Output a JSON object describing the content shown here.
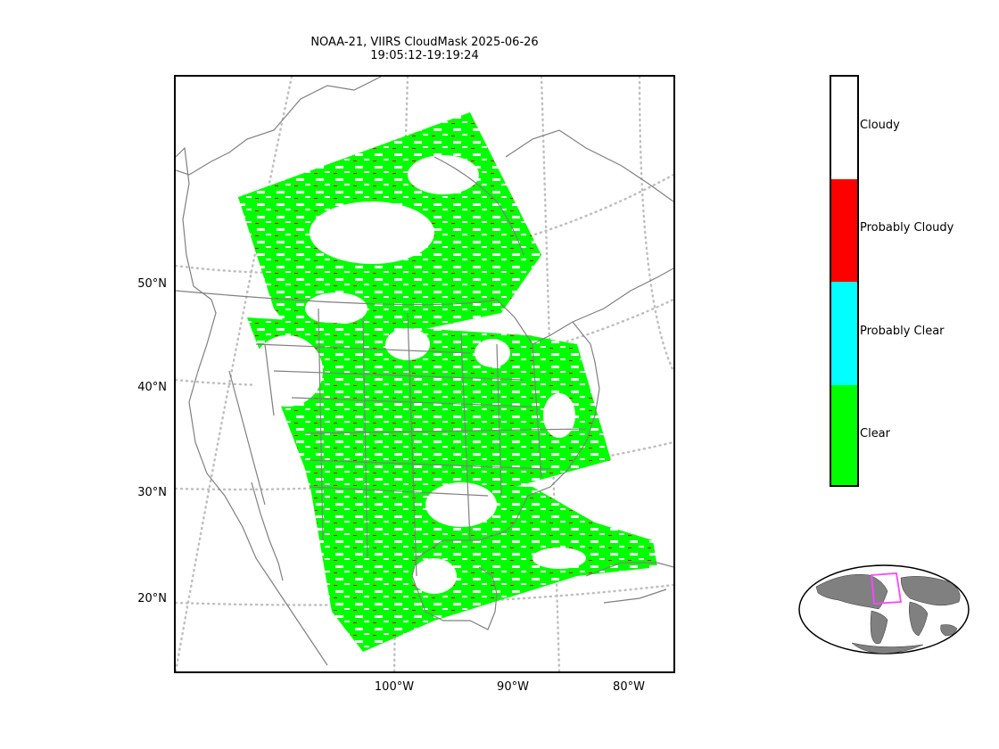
{
  "title": {
    "line1": "NOAA-21, VIIRS CloudMask 2025-06-26",
    "line2": "19:05:12-19:19:24"
  },
  "map": {
    "latitude_labels": [
      "50°N",
      "40°N",
      "30°N",
      "20°N"
    ],
    "longitude_labels": [
      "100°W",
      "90°W",
      "80°W"
    ],
    "colors": {
      "land_outline": "#808080",
      "graticule": "#bfbfbf",
      "clear": "#00ff00",
      "probably_clear": "#00ffff",
      "probably_cloudy": "#ff0000",
      "cloudy": "#ffffff"
    }
  },
  "legend": {
    "categories": [
      {
        "label": "Cloudy",
        "color": "#ffffff"
      },
      {
        "label": "Probably Cloudy",
        "color": "#ff0000"
      },
      {
        "label": "Probably Clear",
        "color": "#00ffff"
      },
      {
        "label": "Clear",
        "color": "#00ff00"
      }
    ]
  },
  "inset": {
    "ocean_color": "#ffffff",
    "land_color": "#808080",
    "highlight_color": "#ff44ff"
  }
}
